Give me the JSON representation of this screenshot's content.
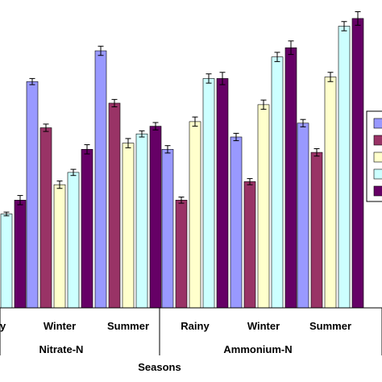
{
  "chart_data": {
    "type": "bar",
    "title": "",
    "xlabel": "Seasons",
    "ylabel": "",
    "ylim": [
      0,
      100
    ],
    "grid": false,
    "legend_placement": "right",
    "groups": [
      "Nitrate-N",
      "Ammonium-N"
    ],
    "categories": [
      {
        "label": "y",
        "group": "Nitrate-N"
      },
      {
        "label": "Winter",
        "group": "Nitrate-N"
      },
      {
        "label": "Summer",
        "group": "Nitrate-N"
      },
      {
        "label": "Rainy",
        "group": "Ammonium-N"
      },
      {
        "label": "Winter",
        "group": "Ammonium-N"
      },
      {
        "label": "Summer",
        "group": "Ammonium-N"
      }
    ],
    "series": [
      {
        "color": "#9999FF",
        "values": [
          null,
          73.5,
          83.5,
          51.5,
          55.5,
          60.0
        ],
        "errors": [
          null,
          1.0,
          1.5,
          1.2,
          1.2,
          1.2
        ]
      },
      {
        "color": "#993366",
        "values": [
          null,
          58.5,
          66.5,
          35.0,
          41.0,
          50.5
        ],
        "errors": [
          null,
          1.2,
          1.2,
          1.0,
          1.0,
          1.2
        ]
      },
      {
        "color": "#FFFFCC",
        "values": [
          null,
          40.0,
          53.5,
          60.5,
          66.0,
          75.0
        ],
        "errors": [
          null,
          1.2,
          1.5,
          1.5,
          1.5,
          1.5
        ]
      },
      {
        "color": "#CCFFFF",
        "values": [
          30.5,
          44.0,
          56.5,
          74.5,
          81.5,
          91.5
        ],
        "errors": [
          0.6,
          1.0,
          1.0,
          1.5,
          1.5,
          1.5
        ]
      },
      {
        "color": "#660066",
        "values": [
          35.0,
          51.5,
          59.0,
          74.5,
          84.5,
          94.0
        ],
        "errors": [
          1.5,
          1.5,
          1.2,
          2.0,
          2.2,
          2.2
        ]
      }
    ]
  }
}
